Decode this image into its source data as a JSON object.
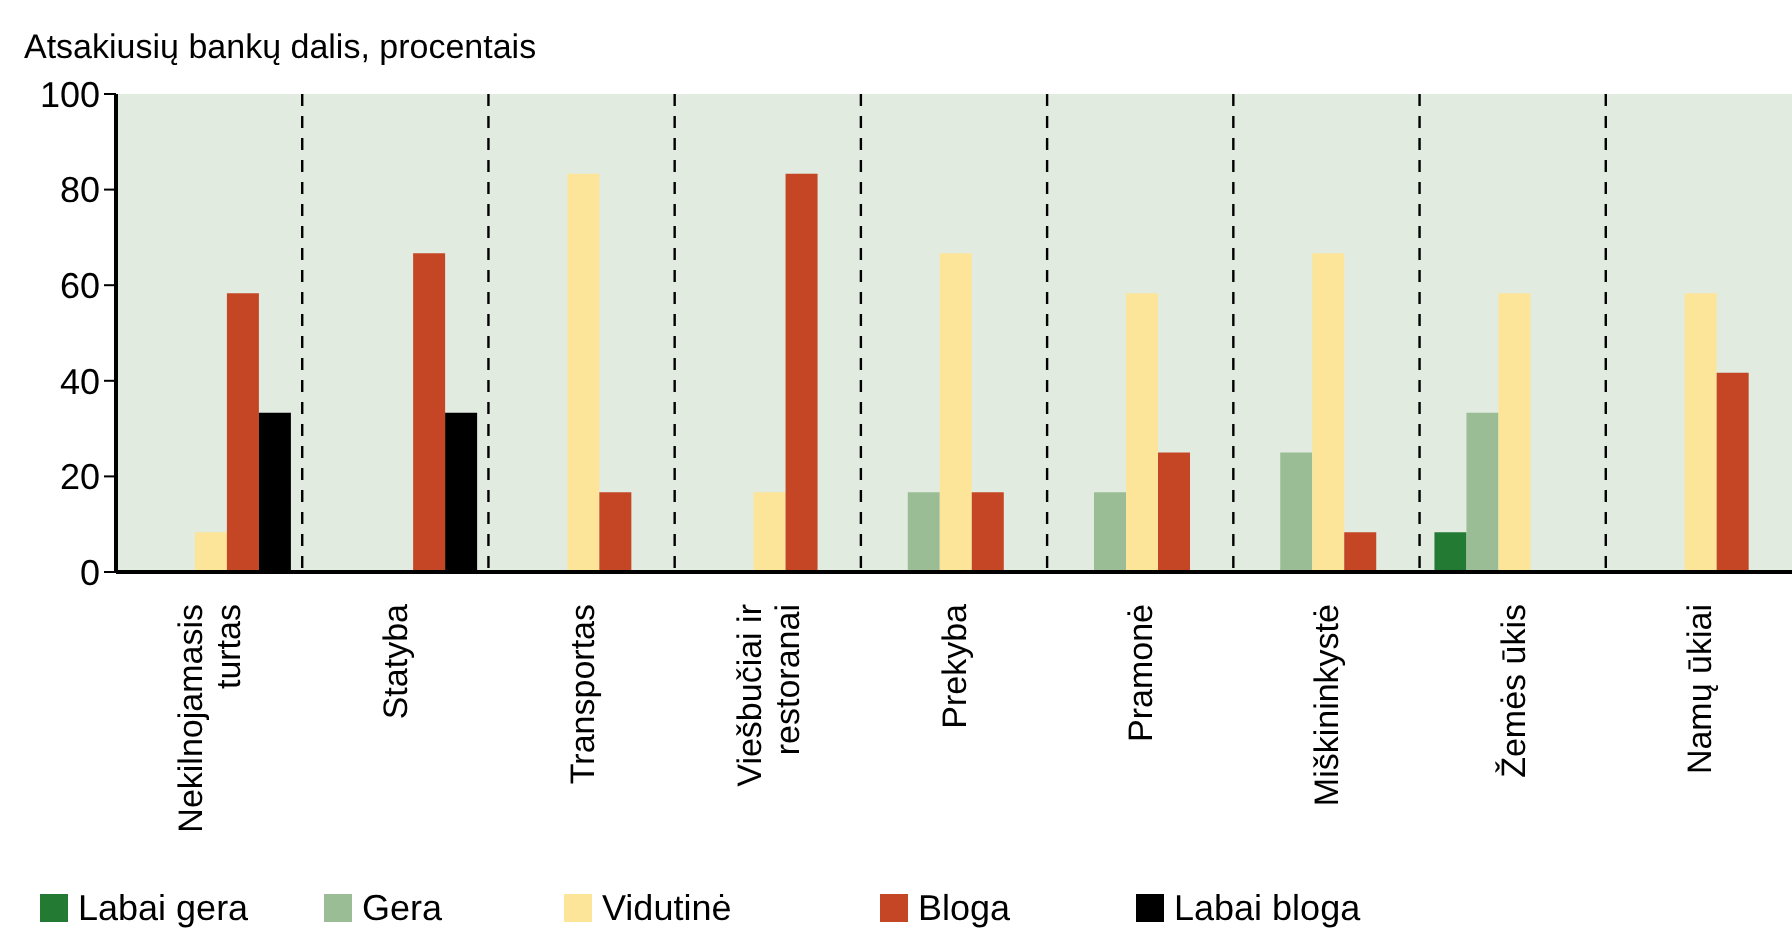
{
  "chart_data": {
    "type": "bar",
    "ylabel": "Atsakiusių bankų dalis, procentais",
    "categories": [
      "Nekilnojamasis turtas",
      "Statyba",
      "Transportas",
      "Viešbučiai ir restoranai",
      "Prekyba",
      "Pramonė",
      "Miškininkystė",
      "Žemės ūkis",
      "Namų ūkiai"
    ],
    "series": [
      {
        "name": "Labai gera",
        "color": "#237a33",
        "values": [
          0,
          0,
          0,
          0,
          0,
          0,
          0,
          8.3,
          0
        ]
      },
      {
        "name": "Gera",
        "color": "#9bbd95",
        "values": [
          0,
          0,
          0,
          0,
          16.7,
          16.7,
          25,
          33.3,
          0
        ]
      },
      {
        "name": "Vidutinė",
        "color": "#fce598",
        "values": [
          8.3,
          0,
          83.3,
          16.7,
          66.7,
          58.3,
          66.7,
          58.3,
          58.3
        ]
      },
      {
        "name": "Bloga",
        "color": "#c44624",
        "values": [
          58.3,
          66.7,
          16.7,
          83.3,
          16.7,
          25,
          8.3,
          0,
          41.7
        ]
      },
      {
        "name": "Labai bloga",
        "color": "#000000",
        "values": [
          33.3,
          33.3,
          0,
          0,
          0,
          0,
          0,
          0,
          0
        ]
      }
    ],
    "ylim": [
      0,
      100
    ],
    "yticks": [
      0,
      20,
      40,
      60,
      80,
      100
    ],
    "grid": "x",
    "legend": "bottom"
  }
}
